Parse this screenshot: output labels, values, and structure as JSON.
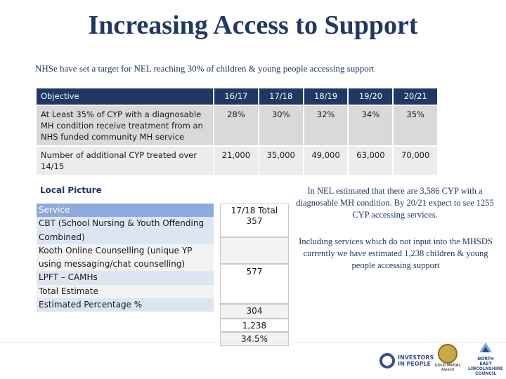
{
  "title": "Increasing Access to Support",
  "subtitle": "NHSe have set a target for NEL reaching 30% of children & young people accessing support",
  "objectives_table": {
    "headers": [
      "Objective",
      "16/17",
      "17/18",
      "18/19",
      "19/20",
      "20/21"
    ],
    "rows": [
      [
        "At Least 35% of CYP with a diagnosable MH condition receive treatment from an NHS funded community MH service",
        "28%",
        "30%",
        "32%",
        "34%",
        "35%"
      ],
      [
        "Number of additional CYP treated over 14/15",
        "21,000",
        "35,000",
        "49,000",
        "63,000",
        "70,000"
      ]
    ]
  },
  "local_picture": {
    "heading": "Local Picture",
    "service_header": "Service",
    "services": [
      "CBT (School Nursing & Youth Offending Combined)",
      "Kooth Online Counselling (unique YP using messaging/chat counselling)",
      "LPFT – CAMHs",
      "Total Estimate",
      "Estimated Percentage %"
    ],
    "totals_header": "17/18 Total",
    "totals": [
      "357",
      "577",
      "304",
      "1,238",
      "34.5%"
    ]
  },
  "notes": [
    "In NEL estimated that there are 3,586 CYP with a diagnosable MH condition. By 20/21 expect to see 1255 CYP accessing services.",
    "Including services which do not input into the MHSDS currently we have estimated 1,238 children & young people accessing support"
  ],
  "logos": {
    "investors": "INVESTORS IN PEOPLE",
    "gold_medal": "GOLD MEDAL",
    "award": "Award",
    "council_line1": "NORTH",
    "council_line2": "EAST",
    "council_line3": "LINCOLNSHIRE",
    "council_line4": "COUNCIL"
  },
  "colors": {
    "title": "#1f3864",
    "table_header": "#1f3864",
    "service_header": "#8ea9db"
  }
}
